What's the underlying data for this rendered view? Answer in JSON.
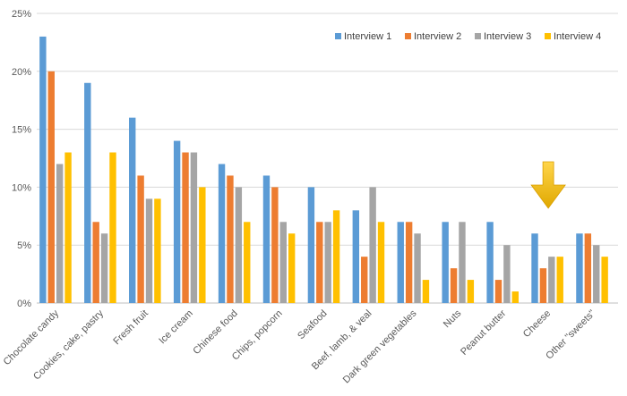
{
  "chart_data": {
    "type": "bar",
    "title": "",
    "xlabel": "",
    "ylabel": "",
    "ylim": [
      0,
      25
    ],
    "yticks": [
      "0%",
      "5%",
      "10%",
      "15%",
      "20%",
      "25%"
    ],
    "grid": true,
    "legend_position": "top-right",
    "categories": [
      "Chocolate candy",
      "Cookies, cake, pastry",
      "Fresh fruit",
      "Ice cream",
      "Chinese food",
      "Chips, popcorn",
      "Seafood",
      "Beef, lamb, & veal",
      "Dark green vegetables",
      "Nuts",
      "Peanut butter",
      "Cheese",
      "Other \"sweets\""
    ],
    "series": [
      {
        "name": "Interview 1",
        "color": "#5B9BD5",
        "values": [
          23,
          19,
          16,
          14,
          12,
          11,
          10,
          8,
          7,
          7,
          7,
          6,
          6
        ]
      },
      {
        "name": "Interview 2",
        "color": "#ED7D31",
        "values": [
          20,
          7,
          11,
          13,
          11,
          10,
          7,
          4,
          7,
          3,
          2,
          3,
          6
        ]
      },
      {
        "name": "Interview 3",
        "color": "#A5A5A5",
        "values": [
          12,
          6,
          9,
          13,
          10,
          7,
          7,
          10,
          6,
          7,
          5,
          4,
          5
        ]
      },
      {
        "name": "Interview 4",
        "color": "#FFC000",
        "values": [
          13,
          13,
          9,
          10,
          7,
          6,
          8,
          7,
          2,
          2,
          1,
          4,
          4
        ]
      }
    ],
    "annotations": [
      {
        "type": "arrow-down",
        "target_category": "Cheese",
        "color": "#FFC000"
      }
    ]
  },
  "colors": {
    "grid": "#D9D9D9",
    "axis": "#BFBFBF",
    "text": "#595959"
  }
}
